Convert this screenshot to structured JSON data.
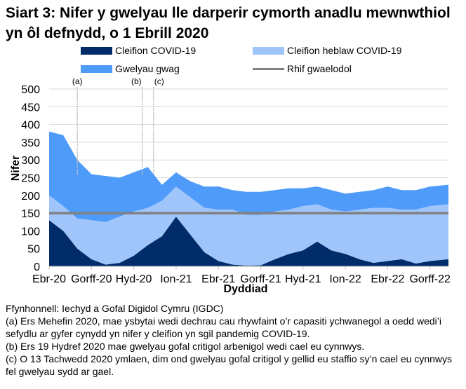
{
  "title": "Siart 3: Nifer y gwelyau lle darperir cymorth anadlu mewnwthiol yn ôl defnydd, o 1 Ebrill 2020",
  "chart_data": {
    "type": "area",
    "stacked": true,
    "xlabel": "Dyddiad",
    "ylabel": "Nifer",
    "ylim": [
      0,
      500
    ],
    "yticks": [
      0,
      50,
      100,
      150,
      200,
      250,
      300,
      350,
      400,
      450,
      500
    ],
    "xtick_labels": [
      "Ebr-20",
      "Gorff-20",
      "Hyd-20",
      "Ion-21",
      "Ebr-21",
      "Gorff-21",
      "Hyd-21",
      "Ion-22",
      "Ebr-22",
      "Gorff-22"
    ],
    "grid": true,
    "legend_position": "top",
    "x": [
      "2020-04",
      "2020-05",
      "2020-06",
      "2020-07",
      "2020-08",
      "2020-09",
      "2020-10",
      "2020-11",
      "2020-12",
      "2021-01",
      "2021-02",
      "2021-03",
      "2021-04",
      "2021-05",
      "2021-06",
      "2021-07",
      "2021-08",
      "2021-09",
      "2021-10",
      "2021-11",
      "2021-12",
      "2022-01",
      "2022-02",
      "2022-03",
      "2022-04",
      "2022-05",
      "2022-06",
      "2022-07",
      "2022-08"
    ],
    "series": [
      {
        "name": "Cleifion COVID-19",
        "color": "#002D6A",
        "values": [
          130,
          100,
          50,
          20,
          5,
          10,
          30,
          60,
          85,
          140,
          90,
          40,
          15,
          5,
          2,
          3,
          20,
          35,
          45,
          70,
          45,
          35,
          20,
          10,
          15,
          20,
          8,
          15,
          20
        ]
      },
      {
        "name": "Cleifion heblaw COVID-19",
        "color": "#9FC5FB",
        "values": [
          70,
          70,
          85,
          110,
          120,
          130,
          125,
          105,
          100,
          85,
          105,
          125,
          145,
          155,
          143,
          142,
          135,
          125,
          125,
          105,
          115,
          120,
          140,
          155,
          150,
          140,
          152,
          155,
          155
        ]
      },
      {
        "name": "Gwelyau gwag",
        "color": "#4F9BFA",
        "values": [
          180,
          200,
          165,
          130,
          130,
          110,
          110,
          115,
          45,
          40,
          45,
          60,
          65,
          55,
          65,
          65,
          60,
          60,
          50,
          50,
          55,
          50,
          50,
          50,
          60,
          55,
          55,
          55,
          55
        ]
      }
    ],
    "reference_line": {
      "name": "Rhif gwaelodol",
      "value": 150,
      "color": "#808080"
    },
    "annotations": [
      {
        "label": "(a)",
        "date": "2020-06-01"
      },
      {
        "label": "(b)",
        "date": "2020-10-19"
      },
      {
        "label": "(c)",
        "date": "2020-11-13"
      }
    ]
  },
  "footnotes": [
    "Ffynhonnell: Iechyd a Gofal Digidol Cymru (IGDC)",
    "(a) Ers Mehefin 2020, mae ysbytai wedi dechrau cau rhywfaint o’r capasiti ychwanegol a oedd wedi’i sefydlu ar gyfer cynydd yn nifer y cleifion yn sgil pandemig COVID-19.",
    "(b) Ers 19 Hydref 2020 mae gwelyau gofal critigol arbenigol wedi cael eu cynnwys.",
    "(c) O 13 Tachwedd 2020 ymlaen, dim ond gwelyau gofal critigol y gellid eu staffio sy’n cael eu cynnwys fel gwelyau sydd ar gael."
  ]
}
